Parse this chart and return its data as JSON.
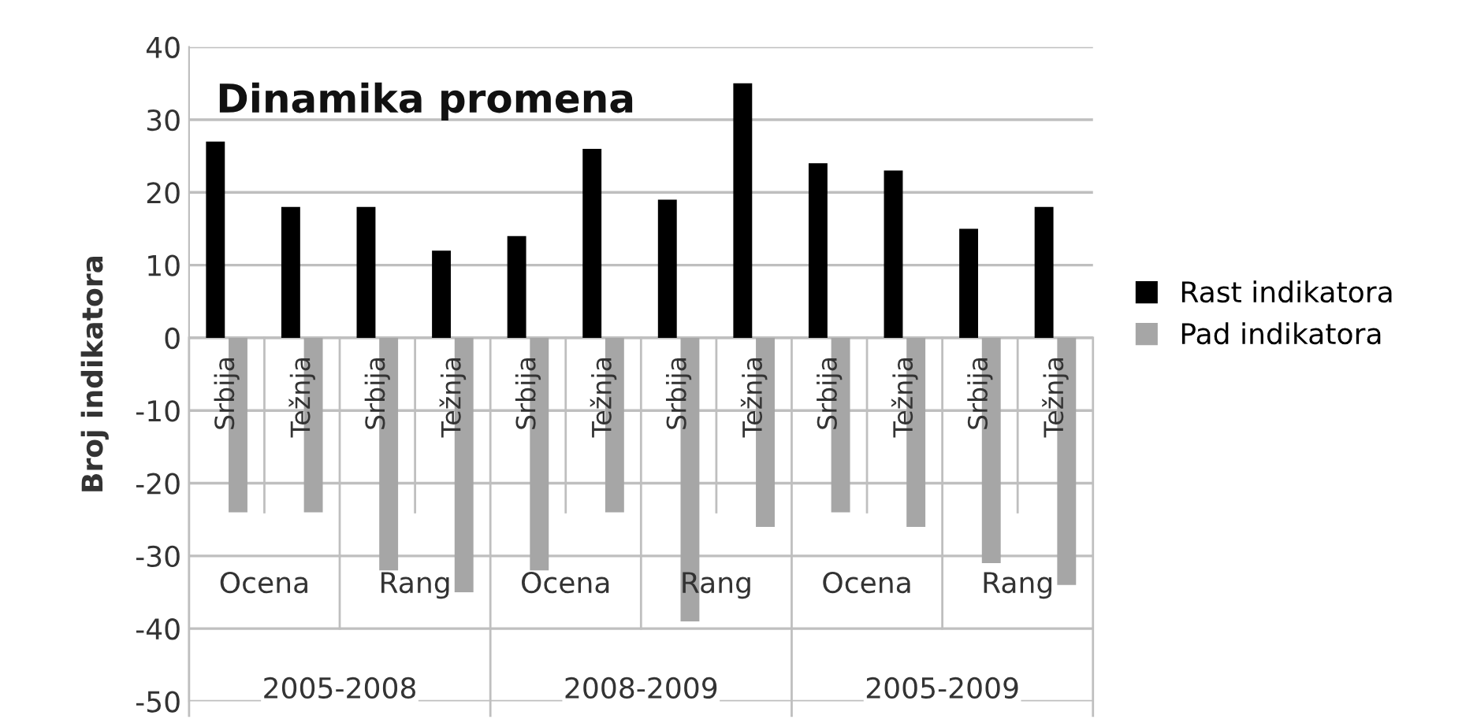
{
  "chart_data": {
    "type": "bar",
    "title": "Dinamika promena",
    "ylabel": "Broj indikatora",
    "categories": [
      "Srbija",
      "Težnja",
      "Srbija",
      "Težnja",
      "Srbija",
      "Težnja",
      "Srbija",
      "Težnja",
      "Srbija",
      "Težnja",
      "Srbija",
      "Težnja"
    ],
    "series": [
      {
        "name": "Rast indikatora",
        "color": "#000000",
        "values": [
          27,
          18,
          18,
          12,
          14,
          26,
          19,
          35,
          24,
          23,
          15,
          18
        ]
      },
      {
        "name": "Pad indikatora",
        "color": "#a6a6a6",
        "values": [
          -24,
          -24,
          -32,
          -35,
          -32,
          -24,
          -39,
          -26,
          -24,
          -26,
          -31,
          -34
        ]
      }
    ],
    "annotations": [
      "Ocena",
      "Rang",
      "Ocena",
      "Rang",
      "Ocena",
      "Rang",
      "2005-2008",
      "2008-2009",
      "2005-2009"
    ],
    "ylim": [
      -50,
      40
    ],
    "yticks": [
      -50,
      -40,
      -30,
      -20,
      -10,
      0,
      10,
      20,
      30,
      40
    ],
    "grid": "y",
    "legend": "right"
  }
}
